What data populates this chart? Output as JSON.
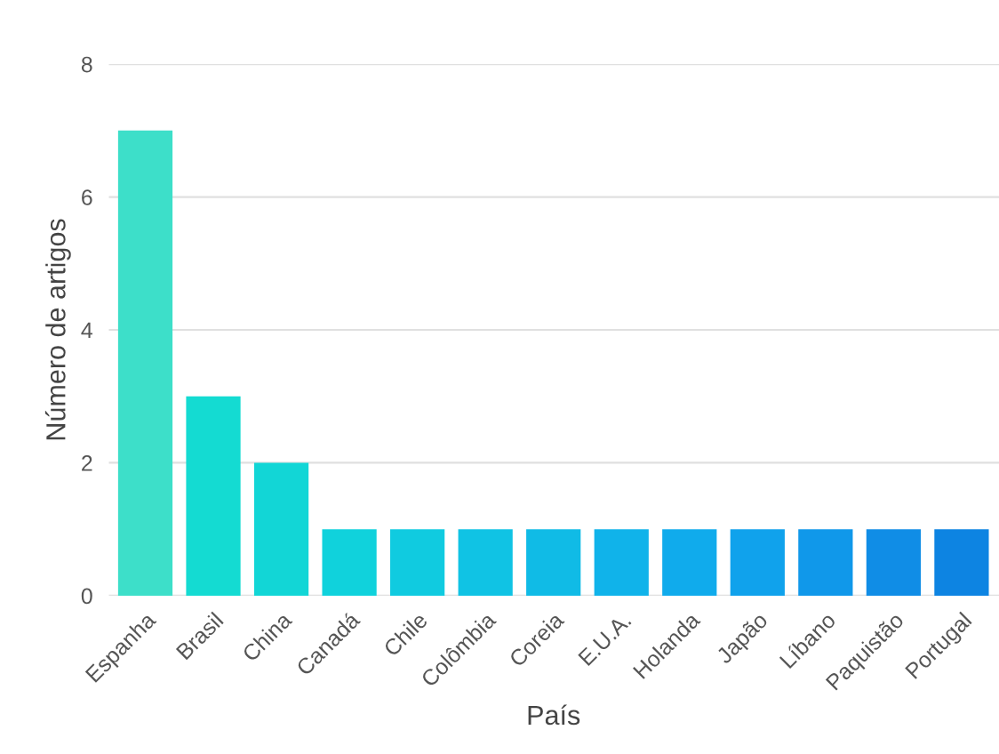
{
  "chart_data": {
    "type": "bar",
    "xlabel": "País",
    "ylabel": "Número de artigos",
    "categories": [
      "Espanha",
      "Brasil",
      "China",
      "Canadá",
      "Chile",
      "Colômbia",
      "Coreia",
      "E.U.A.",
      "Holanda",
      "Japão",
      "Líbano",
      "Paquistão",
      "Portugal"
    ],
    "values": [
      7,
      3,
      2,
      1,
      1,
      1,
      1,
      1,
      1,
      1,
      1,
      1,
      1
    ],
    "colors": [
      "#3ddfc9",
      "#14dbd2",
      "#12d6d6",
      "#10d2dc",
      "#10cbe0",
      "#10c3e4",
      "#10bbe6",
      "#10b3ea",
      "#10abec",
      "#10a2ec",
      "#1098ea",
      "#108de6",
      "#0d84e2"
    ],
    "ylim": [
      0,
      8
    ],
    "yticks": [
      0,
      2,
      4,
      6,
      8
    ],
    "grid": "y"
  }
}
